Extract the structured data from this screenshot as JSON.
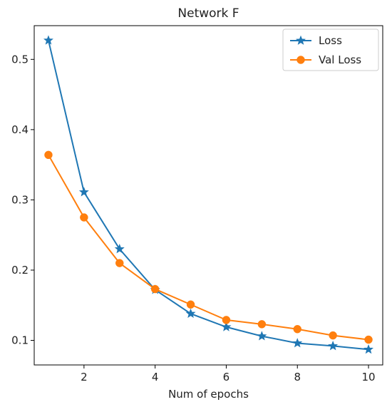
{
  "chart_data": {
    "type": "line",
    "title": "Network F",
    "xlabel": "Num of epochs",
    "ylabel": "",
    "x": [
      1,
      2,
      3,
      4,
      5,
      6,
      7,
      8,
      9,
      10
    ],
    "xlim": [
      0.6,
      10.4
    ],
    "ylim": [
      0.065,
      0.548
    ],
    "xticks": [
      2,
      4,
      6,
      8,
      10
    ],
    "yticks": [
      0.1,
      0.2,
      0.3,
      0.4,
      0.5
    ],
    "xtick_labels": [
      "2",
      "4",
      "6",
      "8",
      "10"
    ],
    "ytick_labels": [
      "0.1",
      "0.2",
      "0.3",
      "0.4",
      "0.5"
    ],
    "grid": false,
    "legend_position": "top-right",
    "series": [
      {
        "name": "Loss",
        "values": [
          0.527,
          0.311,
          0.23,
          0.172,
          0.138,
          0.119,
          0.106,
          0.096,
          0.092,
          0.087
        ],
        "color": "#1f77b4",
        "marker": "star"
      },
      {
        "name": "Val Loss",
        "values": [
          0.364,
          0.275,
          0.21,
          0.173,
          0.151,
          0.129,
          0.123,
          0.116,
          0.107,
          0.101
        ],
        "color": "#ff7f0e",
        "marker": "circle"
      }
    ]
  }
}
